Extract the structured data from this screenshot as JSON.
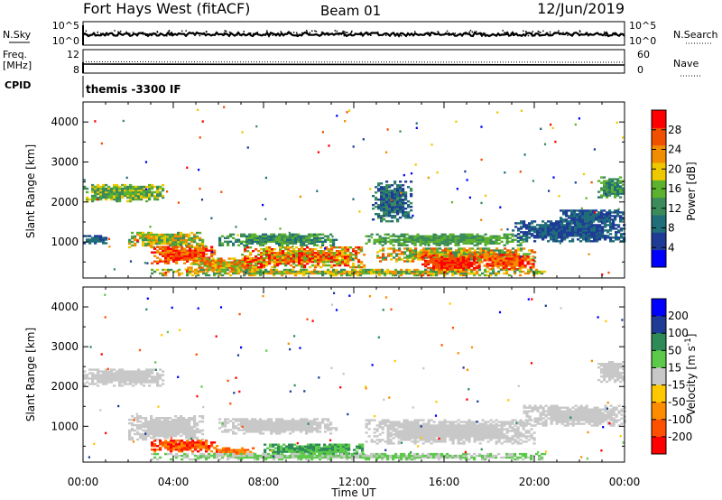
{
  "header": {
    "station": "Fort Hays West (fitACF)",
    "beam": "Beam 01",
    "date": "12/Jun/2019"
  },
  "left_labels": {
    "nsky": "N.Sky",
    "freq": "Freq.",
    "mhz": "[MHz]",
    "cpid": "CPID"
  },
  "right_labels": {
    "nsearch": "N.Search",
    "nave": "Nave"
  },
  "cpid_text": "themis -3300 IF",
  "colors": {
    "power": [
      "#0000ff",
      "#1e3c96",
      "#1f6e78",
      "#3b8c5a",
      "#5cb22e",
      "#f0c800",
      "#f28c00",
      "#f05000",
      "#ff0000"
    ],
    "velocity": [
      "#0000ff",
      "#1e3c96",
      "#2e8b57",
      "#5cc94a",
      "#c8c8c8",
      "#ffc800",
      "#ff8c00",
      "#ff5000",
      "#ff0000"
    ],
    "ground_scatter": "#c8c8c8"
  },
  "chart_data": [
    {
      "type": "line",
      "name": "noise-panel",
      "ylabel_left": "N.Sky",
      "ylabel_right": "N.Search",
      "left_ticks": [
        "10^5",
        "10^0"
      ],
      "right_ticks": [
        "10^5",
        "10^0"
      ],
      "xlim": [
        0,
        24
      ]
    },
    {
      "type": "line",
      "name": "freq-panel",
      "left_ticks": [
        "12",
        "8"
      ],
      "right_ticks": [
        "60",
        "0"
      ],
      "ylim_left": [
        8,
        12
      ],
      "ylim_right": [
        0,
        60
      ],
      "xlim": [
        0,
        24
      ]
    },
    {
      "type": "heatmap",
      "name": "power",
      "ylabel": "Slant Range [km]",
      "ylim": [
        100,
        4500
      ],
      "yticks": [
        1000,
        2000,
        3000,
        4000
      ],
      "xlim": [
        0,
        24
      ],
      "colorbar": {
        "label": "Power [dB]",
        "range": [
          0,
          32
        ],
        "ticks": [
          4,
          8,
          12,
          16,
          20,
          24,
          28
        ]
      },
      "regions": [
        {
          "x0": 0.0,
          "x1": 3.6,
          "r0": 2000,
          "r1": 2450,
          "c": [
            3,
            4,
            5
          ]
        },
        {
          "x0": 0.0,
          "x1": 1.0,
          "r0": 950,
          "r1": 1150,
          "c": [
            1,
            2
          ]
        },
        {
          "x0": 2.0,
          "x1": 5.3,
          "r0": 850,
          "r1": 1250,
          "c": [
            3,
            4,
            5,
            6
          ]
        },
        {
          "x0": 3.0,
          "x1": 5.8,
          "r0": 450,
          "r1": 900,
          "c": [
            6,
            7,
            8
          ]
        },
        {
          "x0": 4.5,
          "x1": 8.0,
          "r0": 250,
          "r1": 600,
          "c": [
            4,
            5,
            6,
            7
          ]
        },
        {
          "x0": 6.0,
          "x1": 11.2,
          "r0": 900,
          "r1": 1200,
          "c": [
            2,
            3,
            4
          ]
        },
        {
          "x0": 7.0,
          "x1": 12.5,
          "r0": 350,
          "r1": 850,
          "c": [
            4,
            5,
            6,
            7,
            8
          ]
        },
        {
          "x0": 12.5,
          "x1": 19.5,
          "r0": 900,
          "r1": 1200,
          "c": [
            3,
            4
          ]
        },
        {
          "x0": 13.0,
          "x1": 20.0,
          "r0": 500,
          "r1": 850,
          "c": [
            3,
            4,
            5,
            6,
            7
          ]
        },
        {
          "x0": 15.0,
          "x1": 17.5,
          "r0": 150,
          "r1": 650,
          "c": [
            7,
            8
          ]
        },
        {
          "x0": 17.5,
          "x1": 20.0,
          "r0": 300,
          "r1": 700,
          "c": [
            6,
            7,
            8
          ]
        },
        {
          "x0": 19.0,
          "x1": 24.0,
          "r0": 1000,
          "r1": 1500,
          "c": [
            1,
            2
          ]
        },
        {
          "x0": 21.0,
          "x1": 24.0,
          "r0": 1450,
          "r1": 1800,
          "c": [
            1,
            2
          ]
        },
        {
          "x0": 12.8,
          "x1": 14.5,
          "r0": 1500,
          "r1": 2500,
          "c": [
            1,
            2,
            3
          ]
        },
        {
          "x0": 22.8,
          "x1": 24.0,
          "r0": 2100,
          "r1": 2600,
          "c": [
            2,
            3,
            4
          ]
        },
        {
          "x0": 3.0,
          "x1": 20.5,
          "r0": 150,
          "r1": 300,
          "c": [
            3,
            4,
            5,
            6
          ]
        }
      ]
    },
    {
      "type": "heatmap",
      "name": "velocity",
      "ylabel": "Slant Range [km]",
      "xlabel": "Time UT",
      "ylim": [
        100,
        4500
      ],
      "yticks": [
        1000,
        2000,
        3000,
        4000
      ],
      "xlim": [
        0,
        24
      ],
      "xticks": [
        "00:00",
        "04:00",
        "08:00",
        "12:00",
        "16:00",
        "20:00",
        "00:00"
      ],
      "colorbar": {
        "label": "Velocity [m s^-1]",
        "ticks": [
          "200",
          "100",
          "50",
          "15",
          "-15",
          "-50",
          "-100",
          "-200"
        ]
      },
      "regions": [
        {
          "x0": 0.0,
          "x1": 3.6,
          "r0": 2000,
          "r1": 2450,
          "c": [
            4
          ]
        },
        {
          "x0": 2.0,
          "x1": 5.3,
          "r0": 650,
          "r1": 1250,
          "c": [
            4
          ]
        },
        {
          "x0": 3.0,
          "x1": 6.0,
          "r0": 350,
          "r1": 650,
          "c": [
            6,
            7,
            8
          ]
        },
        {
          "x0": 5.8,
          "x1": 7.5,
          "r0": 250,
          "r1": 450,
          "c": [
            6,
            7
          ]
        },
        {
          "x0": 6.0,
          "x1": 11.2,
          "r0": 800,
          "r1": 1200,
          "c": [
            4
          ]
        },
        {
          "x0": 8.0,
          "x1": 12.5,
          "r0": 250,
          "r1": 550,
          "c": [
            2,
            3
          ]
        },
        {
          "x0": 12.5,
          "x1": 20.0,
          "r0": 550,
          "r1": 1150,
          "c": [
            4
          ]
        },
        {
          "x0": 19.5,
          "x1": 24.0,
          "r0": 1000,
          "r1": 1500,
          "c": [
            4
          ]
        },
        {
          "x0": 22.8,
          "x1": 24.0,
          "r0": 2100,
          "r1": 2600,
          "c": [
            4
          ]
        },
        {
          "x0": 3.0,
          "x1": 20.5,
          "r0": 150,
          "r1": 300,
          "c": [
            3,
            4
          ]
        }
      ]
    }
  ]
}
